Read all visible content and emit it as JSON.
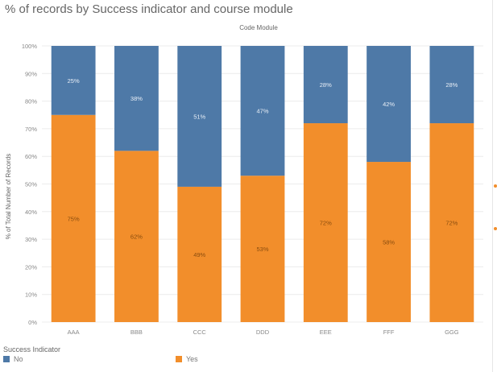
{
  "title": "% of records by Success indicator and course module",
  "chart_data": {
    "type": "bar",
    "stacked": true,
    "column_header": "Code Module",
    "categories": [
      "AAA",
      "BBB",
      "CCC",
      "DDD",
      "EEE",
      "FFF",
      "GGG"
    ],
    "series": [
      {
        "name": "Yes",
        "color": "#f28e2b",
        "values": [
          75,
          62,
          49,
          53,
          72,
          58,
          72
        ],
        "labels": [
          "75%",
          "62%",
          "49%",
          "53%",
          "72%",
          "58%",
          "72%"
        ]
      },
      {
        "name": "No",
        "color": "#4e79a7",
        "values": [
          25,
          38,
          51,
          47,
          28,
          42,
          28
        ],
        "labels": [
          "25%",
          "38%",
          "51%",
          "47%",
          "28%",
          "42%",
          "28%"
        ]
      }
    ],
    "ylabel": "% of Total Number of Records",
    "ylim": [
      0,
      100
    ],
    "yticks": [
      "0%",
      "10%",
      "20%",
      "30%",
      "40%",
      "50%",
      "60%",
      "70%",
      "80%",
      "90%",
      "100%"
    ],
    "grid": true,
    "legend_title": "Success Indicator",
    "legend_position": "bottom"
  }
}
